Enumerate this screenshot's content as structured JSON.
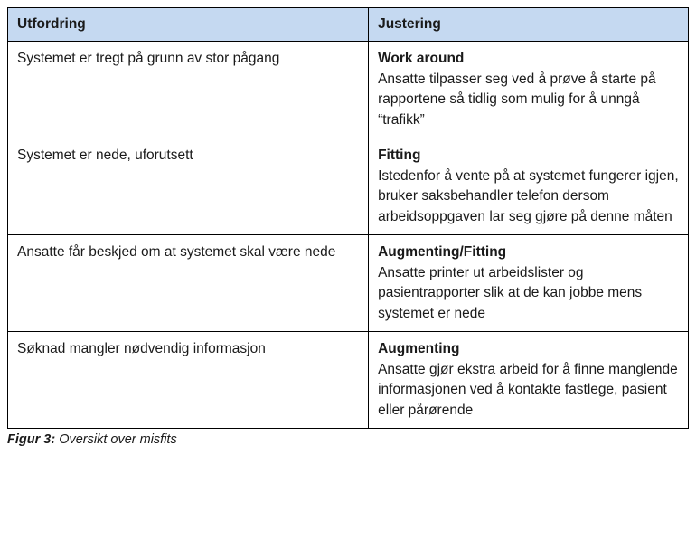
{
  "table": {
    "header_bg": "#c5d9f1",
    "border_color": "#000000",
    "columns": [
      "Utfordring",
      "Justering"
    ],
    "rows": [
      {
        "challenge": "Systemet er tregt på grunn av stor pågang",
        "title": "Work around",
        "desc": "Ansatte tilpasser seg ved å prøve å starte på rapportene så tidlig som mulig for å unngå “trafikk”"
      },
      {
        "challenge": "Systemet er nede, uforutsett",
        "title": "Fitting",
        "desc": "Istedenfor å vente på at systemet fungerer igjen, bruker saksbehandler telefon dersom arbeidsoppgaven lar seg gjøre på denne måten"
      },
      {
        "challenge": "Ansatte får beskjed om at systemet skal være nede",
        "title": "Augmenting/Fitting",
        "desc": "Ansatte printer ut arbeidslister og pasientrapporter slik at de kan jobbe mens systemet er nede"
      },
      {
        "challenge": "Søknad mangler nødvendig informasjon",
        "title": "Augmenting",
        "desc": "Ansatte gjør ekstra arbeid for å finne manglende informasjonen ved å kontakte fastlege, pasient eller pårørende"
      }
    ]
  },
  "caption": {
    "label": "Figur 3:",
    "text": " Oversikt over misfits"
  }
}
